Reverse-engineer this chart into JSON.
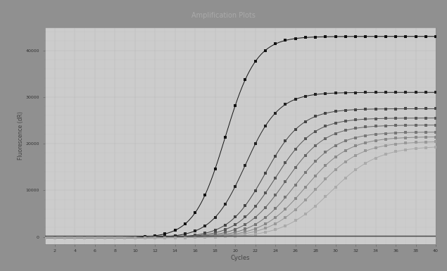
{
  "title": "Amplification Plots",
  "xlabel": "Cycles",
  "ylabel": "Fluorescence (dR)",
  "xlim": [
    1,
    40
  ],
  "ylim": [
    -1500,
    45000
  ],
  "yticks": [
    0,
    10000,
    20000,
    30000,
    40000
  ],
  "ytick_labels": [
    "0",
    "10000",
    "20000",
    "30000",
    "40000"
  ],
  "xticks": [
    2,
    4,
    6,
    8,
    10,
    12,
    14,
    16,
    18,
    20,
    22,
    24,
    26,
    28,
    30,
    32,
    34,
    36,
    38,
    40
  ],
  "outer_bg_color": "#909090",
  "white_border_color": "#f0f0f0",
  "plot_bg_color": "#cccccc",
  "title_color": "#aaaaaa",
  "threshold_y": 200,
  "threshold_color": "#444444",
  "curves": [
    {
      "midpoint": 19,
      "plateau": 43000,
      "baseline": -200,
      "slope": 0.65,
      "color": "#111111",
      "marker": "s",
      "markersize": 3.5
    },
    {
      "midpoint": 21,
      "plateau": 31000,
      "baseline": -200,
      "slope": 0.6,
      "color": "#222222",
      "marker": "s",
      "markersize": 3.0
    },
    {
      "midpoint": 23,
      "plateau": 27500,
      "baseline": -200,
      "slope": 0.55,
      "color": "#444444",
      "marker": "s",
      "markersize": 2.5
    },
    {
      "midpoint": 24,
      "plateau": 25500,
      "baseline": -200,
      "slope": 0.52,
      "color": "#555555",
      "marker": "s",
      "markersize": 2.5
    },
    {
      "midpoint": 25,
      "plateau": 24000,
      "baseline": -200,
      "slope": 0.5,
      "color": "#666666",
      "marker": "s",
      "markersize": 2.5
    },
    {
      "midpoint": 26,
      "plateau": 22500,
      "baseline": -200,
      "slope": 0.48,
      "color": "#777777",
      "marker": "s",
      "markersize": 2.5
    },
    {
      "midpoint": 27,
      "plateau": 21500,
      "baseline": -200,
      "slope": 0.46,
      "color": "#888888",
      "marker": "s",
      "markersize": 2.5
    },
    {
      "midpoint": 28,
      "plateau": 20500,
      "baseline": -200,
      "slope": 0.44,
      "color": "#999999",
      "marker": "s",
      "markersize": 2.5
    },
    {
      "midpoint": 29.5,
      "plateau": 19500,
      "baseline": -200,
      "slope": 0.42,
      "color": "#aaaaaa",
      "marker": "s",
      "markersize": 2.5
    }
  ]
}
